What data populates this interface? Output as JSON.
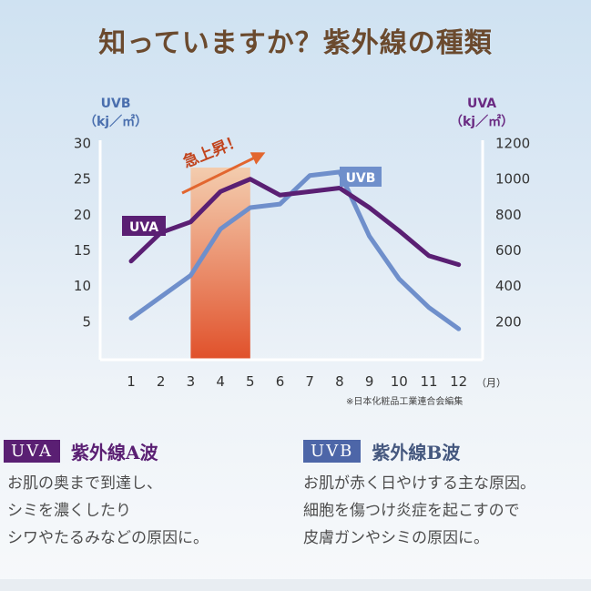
{
  "title": "知っていますか？紫外線の種類",
  "left_axis": {
    "name": "UVB",
    "unit": "（kj／㎡）"
  },
  "right_axis": {
    "name": "UVA",
    "unit": "（kj／㎡）"
  },
  "x_unit": "（月）",
  "footnote": "※日本化粧品工業連合会編集",
  "rise_label": "急上昇！",
  "colors": {
    "uva": "#5a1f73",
    "uvb": "#6f8fcb",
    "highlight_top": "#f6c9a6",
    "highlight_bottom": "#e0502a",
    "arrow": "#e2662f"
  },
  "chart_data": {
    "type": "line",
    "x": [
      1,
      2,
      3,
      4,
      5,
      6,
      7,
      8,
      9,
      10,
      11,
      12
    ],
    "x_ticks": [
      "1",
      "2",
      "3",
      "4",
      "5",
      "6",
      "7",
      "8",
      "9",
      "10",
      "11",
      "12"
    ],
    "highlight_range": [
      3,
      5
    ],
    "series": [
      {
        "name": "UVA",
        "axis": "right",
        "values": [
          540,
          700,
          760,
          930,
          1000,
          910,
          930,
          950,
          840,
          710,
          570,
          520
        ]
      },
      {
        "name": "UVB",
        "axis": "left",
        "values": [
          5.5,
          8.5,
          11.5,
          18,
          21,
          21.5,
          25.5,
          26,
          17,
          11,
          7,
          4
        ]
      }
    ],
    "left_ylim": [
      0,
      30
    ],
    "left_ticks": [
      "5",
      "10",
      "15",
      "20",
      "25",
      "30"
    ],
    "right_ylim": [
      0,
      1200
    ],
    "right_ticks": [
      "200",
      "400",
      "600",
      "800",
      "1000",
      "1200"
    ],
    "grid": false
  },
  "sections": {
    "uva": {
      "badge": "UVA",
      "heading": "紫外線A波",
      "lines": [
        "お肌の奥まで到達し、",
        "シミを濃くしたり",
        "シワやたるみなどの原因に。"
      ]
    },
    "uvb": {
      "badge": "UVB",
      "heading": "紫外線B波",
      "lines": [
        "お肌が赤く日やけする主な原因。",
        "細胞を傷つけ炎症を起こすので",
        "皮膚ガンやシミの原因に。"
      ]
    }
  }
}
